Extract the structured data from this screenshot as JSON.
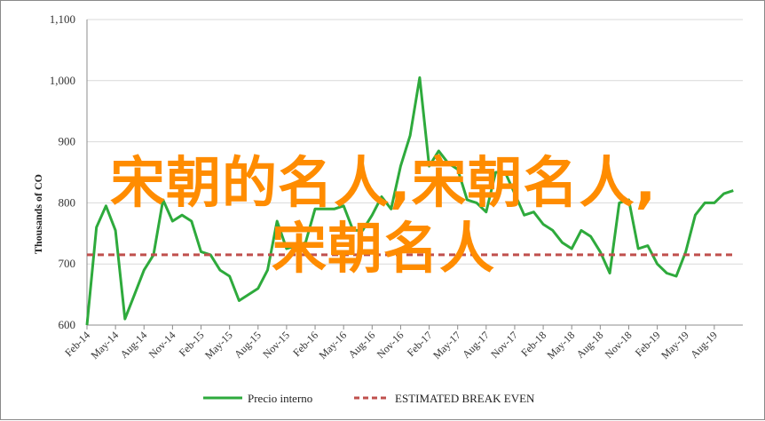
{
  "chart_data": {
    "type": "line",
    "ylabel": "Thousands of CO",
    "ylim": [
      600,
      1100
    ],
    "yticks": [
      "600",
      "700",
      "800",
      "900",
      "1,000",
      "1,100"
    ],
    "xticks": [
      "Feb-14",
      "May-14",
      "Aug-14",
      "Nov-14",
      "Feb-15",
      "May-15",
      "Aug-15",
      "Nov-15",
      "Feb-16",
      "May-16",
      "Aug-16",
      "Nov-16",
      "Feb-17",
      "May-17",
      "Aug-17",
      "Nov-17",
      "Feb-18",
      "May-18",
      "Aug-18",
      "Nov-18",
      "Feb-19",
      "May-19",
      "Aug-19"
    ],
    "series": [
      {
        "name": "Precio interno",
        "color": "#2eaa3c",
        "style": "solid",
        "x": [
          "Feb-14",
          "Mar-14",
          "Apr-14",
          "May-14",
          "Jun-14",
          "Jul-14",
          "Aug-14",
          "Sep-14",
          "Oct-14",
          "Nov-14",
          "Dec-14",
          "Jan-15",
          "Feb-15",
          "Mar-15",
          "Apr-15",
          "May-15",
          "Jun-15",
          "Jul-15",
          "Aug-15",
          "Sep-15",
          "Oct-15",
          "Nov-15",
          "Dec-15",
          "Jan-16",
          "Feb-16",
          "Mar-16",
          "Apr-16",
          "May-16",
          "Jun-16",
          "Jul-16",
          "Aug-16",
          "Sep-16",
          "Oct-16",
          "Nov-16",
          "Dec-16",
          "Jan-17",
          "Feb-17",
          "Mar-17",
          "Apr-17",
          "May-17",
          "Jun-17",
          "Jul-17",
          "Aug-17",
          "Sep-17",
          "Oct-17",
          "Nov-17",
          "Dec-17",
          "Jan-18",
          "Feb-18",
          "Mar-18",
          "Apr-18",
          "May-18",
          "Jun-18",
          "Jul-18",
          "Aug-18",
          "Sep-18",
          "Oct-18",
          "Nov-18",
          "Dec-18",
          "Jan-19",
          "Feb-19",
          "Mar-19",
          "Apr-19",
          "May-19",
          "Jun-19",
          "Jul-19",
          "Aug-19",
          "Sep-19",
          "Oct-19"
        ],
        "values": [
          600,
          760,
          795,
          755,
          610,
          650,
          690,
          715,
          805,
          770,
          780,
          770,
          720,
          715,
          690,
          680,
          640,
          650,
          660,
          690,
          770,
          725,
          730,
          735,
          790,
          790,
          790,
          795,
          755,
          755,
          780,
          810,
          790,
          860,
          910,
          1005,
          860,
          885,
          865,
          855,
          805,
          800,
          785,
          850,
          850,
          815,
          780,
          785,
          765,
          755,
          735,
          725,
          755,
          745,
          720,
          685,
          800,
          805,
          725,
          730,
          700,
          685,
          680,
          720,
          780,
          800,
          800,
          815,
          820
        ]
      },
      {
        "name": "ESTIMATED BREAK EVEN",
        "color": "#c0504d",
        "style": "dashed",
        "x": [
          "Feb-14",
          "Oct-19"
        ],
        "values": [
          715,
          715
        ]
      }
    ],
    "legend_position": "bottom",
    "grid": true
  },
  "overlay": {
    "line1": "宋朝的名人,宋朝名人,",
    "line2": "宋朝名人"
  }
}
